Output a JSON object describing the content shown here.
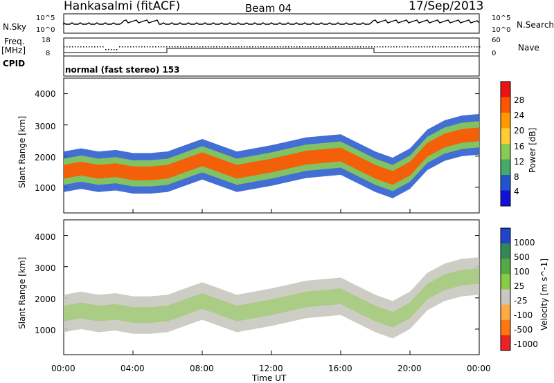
{
  "header": {
    "station": "Hankasalmi (fitACF)",
    "beam": "Beam 04",
    "date": "17/Sep/2013"
  },
  "top_panels": {
    "nsky_label": "N.Sky",
    "nsky_max": "10^5",
    "nsky_min": "10^0",
    "nsearch_label": "N.Search",
    "nsearch_max": "10^5",
    "nsearch_min": "10^0",
    "freq_label_1": "Freq.",
    "freq_label_2": "[MHz]",
    "freq_max": "18",
    "freq_min": "8",
    "nave_label": "Nave",
    "nave_max": "60",
    "nave_min": "0",
    "cpid_label": "CPID",
    "cpid_value": "normal (fast stereo) 153"
  },
  "power_panel": {
    "ylabel": "Slant Range [km]",
    "colorbar_label": "Power [dB]",
    "colorbar_ticks": [
      "28",
      "24",
      "20",
      "16",
      "12",
      "8",
      "4"
    ],
    "colors": [
      "#ee1111",
      "#ff5500",
      "#ff9900",
      "#ffcc33",
      "#88cc55",
      "#44aa66",
      "#2255cc",
      "#1111dd"
    ]
  },
  "velocity_panel": {
    "ylabel": "Slant Range [km]",
    "colorbar_label": "Velocity [m s^-1]",
    "colorbar_ticks": [
      "1000",
      "500",
      "100",
      "25",
      "-25",
      "-100",
      "-500",
      "-1000"
    ],
    "colors": [
      "#2244cc",
      "#338855",
      "#55aa44",
      "#88cc44",
      "#c8c8c0",
      "#ffaa44",
      "#ff7711",
      "#ee2222"
    ]
  },
  "x_axis": {
    "title": "Time UT",
    "ticks": [
      "00:00",
      "04:00",
      "08:00",
      "12:00",
      "16:00",
      "20:00",
      "00:00"
    ]
  },
  "y_ticks": [
    "4000",
    "3000",
    "2000",
    "1000"
  ],
  "chart_data": {
    "type": "heatmap",
    "x_range_hours": [
      0,
      24
    ],
    "y_range_km": [
      180,
      4500
    ],
    "y_ticks_km": [
      1000,
      2000,
      3000,
      4000
    ],
    "x_ticks_hours": [
      0,
      4,
      8,
      12,
      16,
      20,
      24
    ],
    "power_colorbar_db": [
      4,
      8,
      12,
      16,
      20,
      24,
      28
    ],
    "velocity_colorbar_ms": [
      -1000,
      -500,
      -100,
      -25,
      25,
      100,
      500,
      1000
    ],
    "freq_range_mhz": [
      8,
      18
    ],
    "nave_range": [
      0,
      60
    ],
    "main_echo_band": {
      "time_h": [
        0,
        1,
        2,
        3,
        4,
        5,
        6,
        8,
        10,
        12,
        14,
        16,
        18,
        19,
        20,
        21,
        22,
        23,
        24
      ],
      "range_km": [
        1500,
        1600,
        1500,
        1550,
        1450,
        1450,
        1500,
        1900,
        1500,
        1700,
        1950,
        2050,
        1500,
        1300,
        1600,
        2200,
        2500,
        2650,
        2700
      ]
    }
  }
}
